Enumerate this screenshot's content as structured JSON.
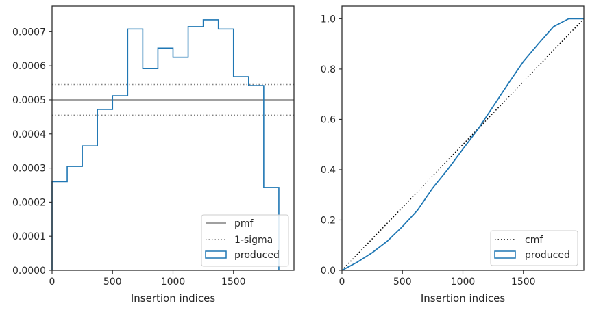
{
  "colors": {
    "hist": "#1f77b4",
    "pmf": "#808080",
    "cmf": "#000000",
    "frame": "#262626"
  },
  "chart_data": [
    {
      "type": "step-histogram",
      "xlabel": "Insertion indices",
      "ylabel": "",
      "xlim": [
        0,
        2000
      ],
      "ylim": [
        0,
        0.000775
      ],
      "x_ticks": [
        0,
        500,
        1000,
        1500
      ],
      "x_tick_labels": [
        "0",
        "500",
        "1000",
        "1500"
      ],
      "y_ticks": [
        0,
        0.0001,
        0.0002,
        0.0003,
        0.0004,
        0.0005,
        0.0006,
        0.0007
      ],
      "y_tick_labels": [
        "0.0000",
        "0.0001",
        "0.0002",
        "0.0003",
        "0.0004",
        "0.0005",
        "0.0006",
        "0.0007"
      ],
      "bin_edges": [
        0,
        125,
        250,
        375,
        500,
        625,
        750,
        875,
        1000,
        1125,
        1250,
        1375,
        1500,
        1625,
        1750,
        1875
      ],
      "values": [
        0.00026,
        0.000305,
        0.000365,
        0.000472,
        0.000512,
        0.000708,
        0.000592,
        0.000652,
        0.000625,
        0.000715,
        0.000735,
        0.000708,
        0.000568,
        0.000542,
        0.000243
      ],
      "pmf": 0.0005,
      "sigma_band": [
        0.000455,
        0.000545
      ],
      "grid": false,
      "legend_position": "bottom-right",
      "legend": [
        {
          "label": "pmf",
          "style": "solid-line"
        },
        {
          "label": "1-sigma",
          "style": "dotted-line"
        },
        {
          "label": "produced",
          "style": "patch"
        }
      ]
    },
    {
      "type": "line",
      "xlabel": "Insertion indices",
      "ylabel": "",
      "xlim": [
        0,
        2000
      ],
      "ylim": [
        0,
        1.05
      ],
      "x_ticks": [
        0,
        500,
        1000,
        1500
      ],
      "x_tick_labels": [
        "0",
        "500",
        "1000",
        "1500"
      ],
      "y_ticks": [
        0,
        0.2,
        0.4,
        0.6,
        0.8,
        1.0
      ],
      "y_tick_labels": [
        "0.0",
        "0.2",
        "0.4",
        "0.6",
        "0.8",
        "1.0"
      ],
      "series": [
        {
          "name": "cmf",
          "style": "dotted",
          "x": [
            0,
            2000
          ],
          "y": [
            0,
            1.0
          ]
        },
        {
          "name": "produced",
          "style": "solid",
          "x": [
            0,
            125,
            250,
            375,
            500,
            625,
            750,
            875,
            1000,
            1125,
            1250,
            1375,
            1500,
            1625,
            1750,
            1875,
            1950,
            2000
          ],
          "y": [
            0,
            0.032,
            0.07,
            0.116,
            0.174,
            0.239,
            0.327,
            0.401,
            0.482,
            0.561,
            0.651,
            0.742,
            0.83,
            0.901,
            0.969,
            1.0,
            1.0,
            1.0
          ]
        }
      ],
      "grid": false,
      "legend_position": "bottom-right",
      "legend": [
        {
          "label": "cmf",
          "style": "dotted-line"
        },
        {
          "label": "produced",
          "style": "patch"
        }
      ]
    }
  ]
}
